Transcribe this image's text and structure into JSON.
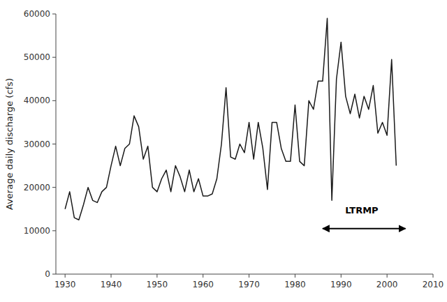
{
  "chart_data": {
    "type": "line",
    "x": [
      1930,
      1931,
      1932,
      1933,
      1934,
      1935,
      1936,
      1937,
      1938,
      1939,
      1940,
      1941,
      1942,
      1943,
      1944,
      1945,
      1946,
      1947,
      1948,
      1949,
      1950,
      1951,
      1952,
      1953,
      1954,
      1955,
      1956,
      1957,
      1958,
      1959,
      1960,
      1961,
      1962,
      1963,
      1964,
      1965,
      1966,
      1967,
      1968,
      1969,
      1970,
      1971,
      1972,
      1973,
      1974,
      1975,
      1976,
      1977,
      1978,
      1979,
      1980,
      1981,
      1982,
      1983,
      1984,
      1985,
      1986,
      1987,
      1988,
      1989,
      1990,
      1991,
      1992,
      1993,
      1994,
      1995,
      1996,
      1997,
      1998,
      1999,
      2000,
      2001,
      2002
    ],
    "values": [
      15000,
      19000,
      13000,
      12500,
      16000,
      20000,
      17000,
      16500,
      19000,
      20000,
      25000,
      29500,
      25000,
      29000,
      30000,
      36500,
      34000,
      26500,
      29500,
      20000,
      19000,
      22000,
      24000,
      19000,
      25000,
      22500,
      19000,
      24000,
      19000,
      22000,
      18000,
      18000,
      18500,
      22000,
      30000,
      43000,
      27000,
      26500,
      30000,
      28000,
      35000,
      26500,
      35000,
      29000,
      19500,
      35000,
      35000,
      29000,
      26000,
      26000,
      39000,
      26000,
      25000,
      40000,
      38000,
      44500,
      44500,
      59000,
      17000,
      45000,
      53500,
      41000,
      37000,
      41500,
      36000,
      41000,
      38000,
      43500,
      32500,
      35000,
      32000,
      49500,
      25000
    ],
    "color": "#1a1a1a",
    "xlim": [
      1928,
      2010
    ],
    "ylim": [
      0,
      60000
    ],
    "xticks": [
      1930,
      1940,
      1950,
      1960,
      1970,
      1980,
      1990,
      2000,
      2010
    ],
    "yticks": [
      0,
      10000,
      20000,
      30000,
      40000,
      50000,
      60000
    ],
    "ylabel": "Average daily discharge (cfs)",
    "grid": false,
    "annotations": [
      {
        "text": "LTRMP",
        "x": 1994.5,
        "y": 13500,
        "arrow": {
          "x_start": 1986,
          "x_end": 2004,
          "y": 10500
        }
      }
    ]
  }
}
